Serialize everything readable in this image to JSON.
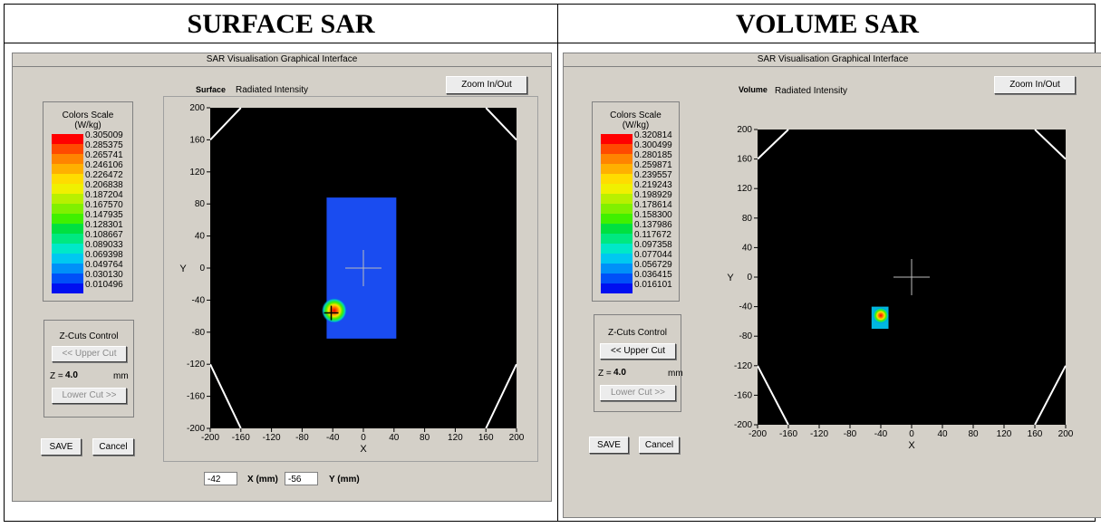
{
  "columns": [
    {
      "heading": "SURFACE SAR",
      "window_title": "SAR Visualisation Graphical Interface",
      "mode_label": "Surface",
      "intensity_label": "Radiated Intensity",
      "zoom_button": "Zoom In/Out",
      "color_scale": {
        "title": "Colors Scale",
        "unit": "(W/kg)",
        "colors": [
          "#ff0000",
          "#ff4a00",
          "#ff8400",
          "#ffb000",
          "#ffdc00",
          "#f0f000",
          "#b8f000",
          "#80f000",
          "#40f000",
          "#00e040",
          "#00e880",
          "#00e8c8",
          "#00c8f0",
          "#0090f8",
          "#0050f8",
          "#0010f0"
        ],
        "values": [
          "0.305009",
          "0.285375",
          "0.265741",
          "0.246106",
          "0.226472",
          "0.206838",
          "0.187204",
          "0.167570",
          "0.147935",
          "0.128301",
          "0.108667",
          "0.089033",
          "0.069398",
          "0.049764",
          "0.030130",
          "0.010496"
        ]
      },
      "zcuts": {
        "title": "Z-Cuts Control",
        "upper": "<< Upper Cut",
        "z_label": "Z =",
        "z_value": "4.0",
        "unit": "mm",
        "lower": "Lower Cut >>",
        "upper_enabled": false
      },
      "save_button": "SAVE",
      "cancel_button": "Cancel",
      "plot": {
        "xlabel": "X",
        "ylabel": "Y",
        "ticks": [
          "-200",
          "-160",
          "-120",
          "-80",
          "-40",
          "0",
          "40",
          "80",
          "120",
          "160",
          "200"
        ],
        "yticks": [
          "200",
          "160",
          "120",
          "80",
          "40",
          "0",
          "-40",
          "-80",
          "-120",
          "-160",
          "-200"
        ],
        "x_range": [
          -200,
          200
        ],
        "y_range": [
          -200,
          200
        ],
        "region": {
          "x": [
            -48,
            43
          ],
          "y": [
            -88,
            88
          ]
        },
        "hotspot": {
          "x": -38,
          "y": -53
        },
        "crosshair": {
          "x": 0,
          "y": 0
        },
        "cursor": {
          "x": -42,
          "y": -56
        }
      },
      "coords": {
        "x_value": "-42",
        "x_label": "X (mm)",
        "y_value": "-56",
        "y_label": "Y (mm)"
      }
    },
    {
      "heading": "VOLUME SAR",
      "window_title": "SAR Visualisation Graphical Interface",
      "mode_label": "Volume",
      "intensity_label": "Radiated Intensity",
      "zoom_button": "Zoom In/Out",
      "color_scale": {
        "title": "Colors Scale",
        "unit": "(W/kg)",
        "colors": [
          "#ff0000",
          "#ff4a00",
          "#ff8400",
          "#ffb000",
          "#ffdc00",
          "#f0f000",
          "#b8f000",
          "#80f000",
          "#40f000",
          "#00e040",
          "#00e880",
          "#00e8c8",
          "#00c8f0",
          "#0090f8",
          "#0050f8",
          "#0010f0"
        ],
        "values": [
          "0.320814",
          "0.300499",
          "0.280185",
          "0.259871",
          "0.239557",
          "0.219243",
          "0.198929",
          "0.178614",
          "0.158300",
          "0.137986",
          "0.117672",
          "0.097358",
          "0.077044",
          "0.056729",
          "0.036415",
          "0.016101"
        ]
      },
      "zcuts": {
        "title": "Z-Cuts Control",
        "upper": "<< Upper Cut",
        "z_label": "Z =",
        "z_value": "4.0",
        "unit": "mm",
        "lower": "Lower Cut >>",
        "upper_enabled": true
      },
      "save_button": "SAVE",
      "cancel_button": "Cancel",
      "plot": {
        "xlabel": "X",
        "ylabel": "Y",
        "ticks": [
          "-200",
          "-160",
          "-120",
          "-80",
          "-40",
          "0",
          "40",
          "80",
          "120",
          "160",
          "200"
        ],
        "yticks": [
          "200",
          "160",
          "120",
          "80",
          "40",
          "0",
          "-40",
          "-80",
          "-120",
          "-160",
          "-200"
        ],
        "x_range": [
          -200,
          200
        ],
        "y_range": [
          -200,
          200
        ],
        "region": {
          "x": [
            -52,
            -30
          ],
          "y": [
            -70,
            -40
          ]
        },
        "hotspot": {
          "x": -40,
          "y": -52
        },
        "crosshair": {
          "x": 0,
          "y": 0
        }
      }
    }
  ]
}
